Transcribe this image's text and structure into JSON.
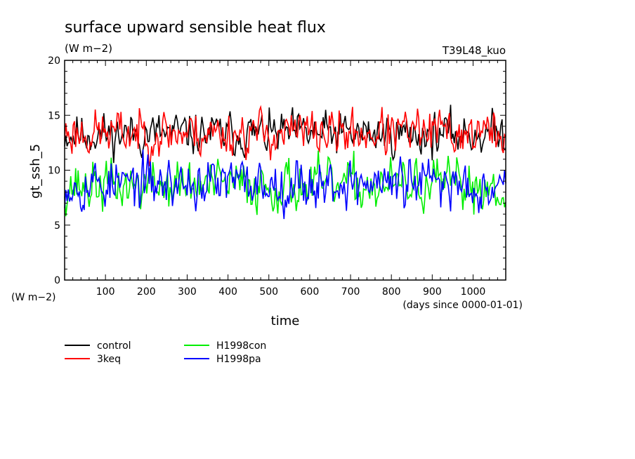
{
  "chart_data": {
    "type": "line",
    "title": "surface upward sensible heat flux",
    "units_label": "(W m−2)",
    "run_label": "T39L48_kuo",
    "ylabel": "gt_ssh_5",
    "xlabel": "time",
    "x_units_label": "(days since 0000-01-01)",
    "y_units_label": "(W m−2)",
    "xlim": [
      0,
      1080
    ],
    "ylim": [
      0,
      20
    ],
    "x_ticks": [
      100,
      200,
      300,
      400,
      500,
      600,
      700,
      800,
      900,
      1000
    ],
    "y_ticks": [
      0,
      5,
      10,
      15,
      20
    ],
    "legend_position": "bottom-left",
    "grid": false,
    "series": [
      {
        "name": "control",
        "color": "#000000",
        "mean": 13.3,
        "amplitude": 1.0,
        "x_step": 3,
        "seed": 11
      },
      {
        "name": "3keq",
        "color": "#ff0000",
        "mean": 13.4,
        "amplitude": 1.1,
        "x_step": 3,
        "seed": 23
      },
      {
        "name": "H1998con",
        "color": "#00ee00",
        "mean": 8.6,
        "amplitude": 1.2,
        "x_step": 3,
        "seed": 37
      },
      {
        "name": "H1998pa",
        "color": "#0000ff",
        "mean": 8.8,
        "amplitude": 1.2,
        "x_step": 3,
        "seed": 53
      }
    ]
  }
}
